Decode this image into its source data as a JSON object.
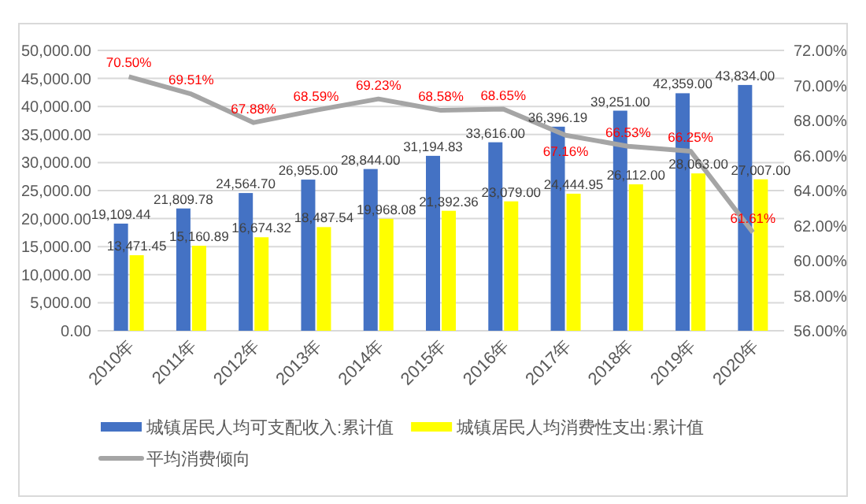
{
  "chart_data": {
    "type": "bar",
    "categories": [
      "2010年",
      "2011年",
      "2012年",
      "2013年",
      "2014年",
      "2015年",
      "2016年",
      "2017年",
      "2018年",
      "2019年",
      "2020年"
    ],
    "series": [
      {
        "name": "城镇居民人均可支配收入:累计值",
        "color": "#4472c4",
        "values": [
          19109.44,
          21809.78,
          24564.7,
          26955.0,
          28844.0,
          31194.83,
          33616.0,
          36396.19,
          39251.0,
          42359.0,
          43834.0
        ],
        "value_labels": [
          "19,109.44",
          "21,809.78",
          "24,564.70",
          "26,955.00",
          "28,844.00",
          "31,194.83",
          "33,616.00",
          "36,396.19",
          "39,251.00",
          "42,359.00",
          "43,834.00"
        ]
      },
      {
        "name": "城镇居民人均消费性支出:累计值",
        "color": "#ffff00",
        "values": [
          13471.45,
          15160.89,
          16674.32,
          18487.54,
          19968.08,
          21392.36,
          23079.0,
          24444.95,
          26112.0,
          28063.0,
          27007.0
        ],
        "value_labels": [
          "13,471.45",
          "15,160.89",
          "16,674.32",
          "18,487.54",
          "19,968.08",
          "21,392.36",
          "23,079.00",
          "24,444.95",
          "26,112.00",
          "28,063.00",
          "27,007.00"
        ]
      },
      {
        "name": "平均消费倾向",
        "type": "line",
        "axis": "y2",
        "color": "#a5a5a5",
        "values": [
          70.5,
          69.51,
          67.88,
          68.59,
          69.23,
          68.58,
          68.65,
          67.16,
          66.53,
          66.25,
          61.61
        ],
        "value_labels": [
          "70.50%",
          "69.51%",
          "67.88%",
          "68.59%",
          "69.23%",
          "68.58%",
          "68.65%",
          "67.16%",
          "66.53%",
          "66.25%",
          "61.61%"
        ]
      }
    ],
    "ylim": [
      0,
      50000
    ],
    "yticks": [
      {
        "value": 0,
        "label": "0.00"
      },
      {
        "value": 5000,
        "label": "5,000.00"
      },
      {
        "value": 10000,
        "label": "10,000.00"
      },
      {
        "value": 15000,
        "label": "15,000.00"
      },
      {
        "value": 20000,
        "label": "20,000.00"
      },
      {
        "value": 25000,
        "label": "25,000.00"
      },
      {
        "value": 30000,
        "label": "30,000.00"
      },
      {
        "value": 35000,
        "label": "35,000.00"
      },
      {
        "value": 40000,
        "label": "40,000.00"
      },
      {
        "value": 45000,
        "label": "45,000.00"
      },
      {
        "value": 50000,
        "label": "50,000.00"
      }
    ],
    "y2lim": [
      56,
      72
    ],
    "y2ticks": [
      {
        "value": 56,
        "label": "56.00%"
      },
      {
        "value": 58,
        "label": "58.00%"
      },
      {
        "value": 60,
        "label": "60.00%"
      },
      {
        "value": 62,
        "label": "62.00%"
      },
      {
        "value": 64,
        "label": "64.00%"
      },
      {
        "value": 66,
        "label": "66.00%"
      },
      {
        "value": 68,
        "label": "68.00%"
      },
      {
        "value": 70,
        "label": "70.00%"
      },
      {
        "value": 72,
        "label": "72.00%"
      }
    ],
    "grid": "y",
    "legend": "bottom"
  }
}
